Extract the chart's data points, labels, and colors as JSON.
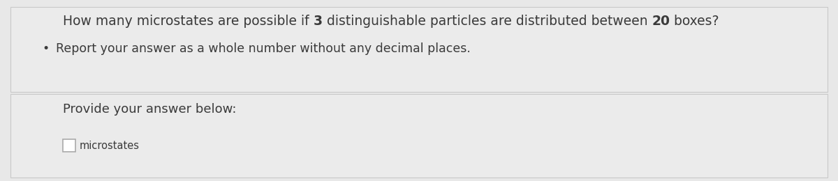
{
  "q_part1": "How many microstates are possible if ",
  "q_bold1": "3",
  "q_part2": " distinguishable particles are distributed between ",
  "q_bold2": "20",
  "q_part3": " boxes?",
  "bullet_text": "Report your answer as a whole number without any decimal places.",
  "provide_text": "Provide your answer below:",
  "unit_text": "microstates",
  "bg_color": "#e8e8e8",
  "panel_color": "#ebebeb",
  "divider_color": "#c8c8c8",
  "text_color": "#3a3a3a",
  "box_color": "#ffffff",
  "box_border_color": "#aaaaaa",
  "font_size_main": 13.5,
  "font_size_bullet": 12.5,
  "font_size_provide": 13.0,
  "font_size_unit": 10.5
}
